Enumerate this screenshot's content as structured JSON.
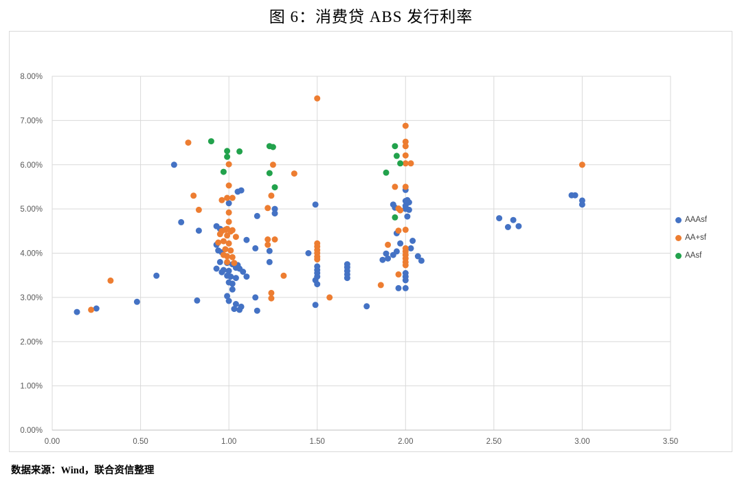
{
  "header": {
    "title": "图 6：消费贷 ABS 发行利率"
  },
  "footer": {
    "source_text": "数据来源：Wind，联合资信整理"
  },
  "chart_data": {
    "type": "scatter",
    "title": "图 6：消费贷 ABS 发行利率",
    "xlabel": "",
    "ylabel": "",
    "xlim": [
      0,
      3.5
    ],
    "ylim": [
      0,
      8
    ],
    "grid": true,
    "legend_position": "right",
    "marker_diameter_px": 9,
    "x_ticks": [
      0,
      0.5,
      1,
      1.5,
      2,
      2.5,
      3,
      3.5
    ],
    "x_tick_labels": [
      "0.00",
      "0.50",
      "1.00",
      "1.50",
      "2.00",
      "2.50",
      "3.00",
      "3.50"
    ],
    "y_ticks": [
      0,
      1,
      2,
      3,
      4,
      5,
      6,
      7,
      8
    ],
    "y_tick_labels": [
      "0.00%",
      "1.00%",
      "2.00%",
      "3.00%",
      "4.00%",
      "5.00%",
      "6.00%",
      "7.00%",
      "8.00%"
    ],
    "axis_color": "#bfbfbf",
    "gridline_color": "#d9d9d9",
    "tick_label_color": "#595959",
    "series": [
      {
        "name": "AAAsf",
        "color": "#4472C4",
        "points": [
          [
            0.14,
            2.67
          ],
          [
            0.25,
            2.75
          ],
          [
            0.48,
            2.9
          ],
          [
            0.59,
            3.49
          ],
          [
            0.69,
            6.0
          ],
          [
            0.73,
            4.7
          ],
          [
            0.83,
            4.51
          ],
          [
            0.82,
            2.93
          ],
          [
            0.93,
            4.61
          ],
          [
            0.95,
            4.55
          ],
          [
            0.93,
            4.19
          ],
          [
            0.94,
            4.06
          ],
          [
            0.96,
            4.02
          ],
          [
            0.95,
            3.8
          ],
          [
            0.99,
            3.78
          ],
          [
            1.02,
            3.75
          ],
          [
            1.05,
            3.73
          ],
          [
            0.93,
            3.65
          ],
          [
            0.97,
            3.62
          ],
          [
            1.0,
            3.6
          ],
          [
            1.04,
            3.67
          ],
          [
            1.06,
            3.65
          ],
          [
            1.08,
            3.58
          ],
          [
            0.96,
            3.57
          ],
          [
            0.99,
            3.49
          ],
          [
            1.01,
            3.47
          ],
          [
            1.04,
            3.44
          ],
          [
            1.1,
            3.47
          ],
          [
            1.0,
            3.34
          ],
          [
            1.02,
            3.31
          ],
          [
            1.02,
            3.18
          ],
          [
            0.99,
            3.03
          ],
          [
            1.0,
            2.92
          ],
          [
            1.04,
            2.85
          ],
          [
            1.03,
            2.74
          ],
          [
            1.07,
            2.79
          ],
          [
            1.06,
            2.72
          ],
          [
            1.05,
            5.39
          ],
          [
            1.07,
            5.42
          ],
          [
            1.0,
            5.13
          ],
          [
            1.1,
            4.3
          ],
          [
            1.16,
            4.84
          ],
          [
            1.15,
            4.11
          ],
          [
            1.23,
            4.05
          ],
          [
            1.23,
            3.8
          ],
          [
            1.26,
            5.0
          ],
          [
            1.26,
            4.9
          ],
          [
            1.15,
            3.0
          ],
          [
            1.16,
            2.7
          ],
          [
            1.45,
            4.0
          ],
          [
            1.49,
            5.1
          ],
          [
            1.5,
            3.7
          ],
          [
            1.5,
            3.62
          ],
          [
            1.5,
            3.55
          ],
          [
            1.5,
            3.47
          ],
          [
            1.49,
            3.39
          ],
          [
            1.5,
            3.3
          ],
          [
            1.49,
            2.83
          ],
          [
            1.67,
            3.75
          ],
          [
            1.67,
            3.68
          ],
          [
            1.67,
            3.6
          ],
          [
            1.67,
            3.52
          ],
          [
            1.67,
            3.44
          ],
          [
            1.78,
            2.8
          ],
          [
            1.93,
            5.1
          ],
          [
            1.94,
            5.03
          ],
          [
            2.0,
            5.43
          ],
          [
            2.01,
            5.2
          ],
          [
            2.0,
            5.18
          ],
          [
            2.02,
            5.15
          ],
          [
            2.0,
            5.07
          ],
          [
            2.0,
            5.0
          ],
          [
            2.02,
            4.98
          ],
          [
            2.01,
            4.83
          ],
          [
            1.95,
            4.45
          ],
          [
            2.04,
            4.28
          ],
          [
            1.97,
            4.22
          ],
          [
            2.03,
            4.11
          ],
          [
            1.95,
            4.04
          ],
          [
            1.93,
            3.96
          ],
          [
            1.89,
            3.99
          ],
          [
            1.9,
            3.88
          ],
          [
            1.87,
            3.85
          ],
          [
            2.07,
            3.93
          ],
          [
            2.09,
            3.83
          ],
          [
            2.0,
            3.55
          ],
          [
            2.0,
            3.47
          ],
          [
            2.0,
            3.39
          ],
          [
            1.96,
            3.21
          ],
          [
            2.0,
            3.21
          ],
          [
            2.53,
            4.79
          ],
          [
            2.61,
            4.75
          ],
          [
            2.58,
            4.59
          ],
          [
            2.64,
            4.61
          ],
          [
            2.94,
            5.31
          ],
          [
            2.96,
            5.31
          ],
          [
            3.0,
            5.19
          ],
          [
            3.0,
            5.1
          ]
        ]
      },
      {
        "name": "AA+sf",
        "color": "#ED7D31",
        "points": [
          [
            0.22,
            2.72
          ],
          [
            0.33,
            3.38
          ],
          [
            0.77,
            6.5
          ],
          [
            0.8,
            5.3
          ],
          [
            0.83,
            4.98
          ],
          [
            0.96,
            5.2
          ],
          [
            0.99,
            5.25
          ],
          [
            1.02,
            5.25
          ],
          [
            1.0,
            5.53
          ],
          [
            1.0,
            6.01
          ],
          [
            1.0,
            4.92
          ],
          [
            1.0,
            4.71
          ],
          [
            0.99,
            4.55
          ],
          [
            0.96,
            4.5
          ],
          [
            1.02,
            4.52
          ],
          [
            0.98,
            4.53
          ],
          [
            0.95,
            4.43
          ],
          [
            0.99,
            4.4
          ],
          [
            1.01,
            4.49
          ],
          [
            1.04,
            4.37
          ],
          [
            0.94,
            4.24
          ],
          [
            0.97,
            4.27
          ],
          [
            1.0,
            4.22
          ],
          [
            0.98,
            4.09
          ],
          [
            1.01,
            4.06
          ],
          [
            0.97,
            3.96
          ],
          [
            0.99,
            3.93
          ],
          [
            1.02,
            3.91
          ],
          [
            0.99,
            3.8
          ],
          [
            1.03,
            3.78
          ],
          [
            1.22,
            5.02
          ],
          [
            1.24,
            5.3
          ],
          [
            1.25,
            6.0
          ],
          [
            1.22,
            4.31
          ],
          [
            1.26,
            4.31
          ],
          [
            1.22,
            4.19
          ],
          [
            1.31,
            3.49
          ],
          [
            1.24,
            3.1
          ],
          [
            1.24,
            2.98
          ],
          [
            1.37,
            5.8
          ],
          [
            1.5,
            7.5
          ],
          [
            1.5,
            4.22
          ],
          [
            1.5,
            4.15
          ],
          [
            1.5,
            4.07
          ],
          [
            1.5,
            4.0
          ],
          [
            1.5,
            3.92
          ],
          [
            1.5,
            3.86
          ],
          [
            1.57,
            3.0
          ],
          [
            1.86,
            3.28
          ],
          [
            1.9,
            4.19
          ],
          [
            1.94,
            5.5
          ],
          [
            1.96,
            5.01
          ],
          [
            1.97,
            4.97
          ],
          [
            1.96,
            4.51
          ],
          [
            2.0,
            4.53
          ],
          [
            1.96,
            3.52
          ],
          [
            2.0,
            6.88
          ],
          [
            2.0,
            6.52
          ],
          [
            2.0,
            6.42
          ],
          [
            2.0,
            6.21
          ],
          [
            2.0,
            6.03
          ],
          [
            2.03,
            6.03
          ],
          [
            2.0,
            5.5
          ],
          [
            2.0,
            4.11
          ],
          [
            2.0,
            4.04
          ],
          [
            2.0,
            3.96
          ],
          [
            2.0,
            3.88
          ],
          [
            2.0,
            3.8
          ],
          [
            2.0,
            3.73
          ],
          [
            3.0,
            6.0
          ]
        ]
      },
      {
        "name": "AAsf",
        "color": "#22A24C",
        "points": [
          [
            0.9,
            6.53
          ],
          [
            0.99,
            6.31
          ],
          [
            0.99,
            6.18
          ],
          [
            1.06,
            6.3
          ],
          [
            0.97,
            5.84
          ],
          [
            1.23,
            6.42
          ],
          [
            1.25,
            6.4
          ],
          [
            1.23,
            5.81
          ],
          [
            1.26,
            5.49
          ],
          [
            1.89,
            5.82
          ],
          [
            1.94,
            6.42
          ],
          [
            1.95,
            6.2
          ],
          [
            1.97,
            6.03
          ],
          [
            1.94,
            4.81
          ]
        ]
      }
    ]
  }
}
